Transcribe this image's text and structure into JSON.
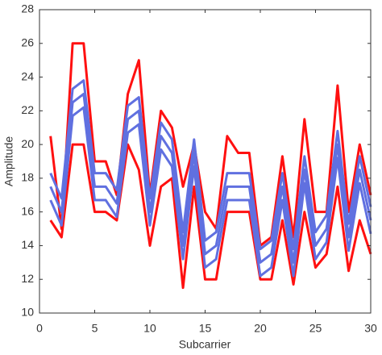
{
  "chart_data": {
    "type": "line",
    "x_label": "Subcarrier",
    "y_label": "Amplitude",
    "x": [
      1,
      2,
      3,
      4,
      5,
      6,
      7,
      8,
      9,
      10,
      11,
      12,
      13,
      14,
      15,
      16,
      17,
      18,
      19,
      20,
      21,
      22,
      23,
      24,
      25,
      26,
      27,
      28,
      29,
      30
    ],
    "series": [
      {
        "color": "#ff1010",
        "values": [
          20.5,
          15,
          26,
          26,
          19,
          19,
          17,
          23,
          25,
          17,
          22,
          21,
          17.5,
          20,
          16,
          15,
          20.5,
          19.5,
          19.5,
          14,
          14.5,
          19.3,
          14.5,
          21.5,
          16,
          16,
          23.5,
          16,
          20,
          17
        ]
      },
      {
        "color": "#ff1010",
        "values": [
          15.5,
          14.5,
          20,
          20,
          16,
          16,
          15.5,
          20,
          18.5,
          14,
          17.5,
          18,
          11.5,
          17.5,
          12,
          12,
          16,
          16,
          16,
          12,
          12,
          15.5,
          11.7,
          16,
          12.7,
          13.5,
          17.5,
          12.5,
          15.5,
          13.5
        ]
      },
      {
        "color": "#6070e0",
        "values": [
          18.3,
          16.8,
          23.3,
          23.8,
          18.3,
          18.3,
          17.3,
          22.3,
          22.8,
          16.8,
          21.3,
          20.3,
          14.8,
          20.3,
          14.3,
          14.8,
          18.3,
          18.3,
          18.3,
          13.8,
          14.3,
          18.3,
          13.8,
          19.3,
          14.8,
          15.8,
          20.8,
          15.3,
          19.3,
          16.3
        ]
      },
      {
        "color": "#6070e0",
        "values": [
          17.5,
          16,
          22.5,
          23,
          17.5,
          17.5,
          16.5,
          21.5,
          22,
          16,
          20.5,
          19.5,
          14,
          19.5,
          13.5,
          14,
          17.5,
          17.5,
          17.5,
          13,
          13.5,
          17.5,
          13,
          18.5,
          14,
          15,
          20,
          14.5,
          18.5,
          15.5
        ]
      },
      {
        "color": "#6070e0",
        "values": [
          16.7,
          15.2,
          21.7,
          22.2,
          16.7,
          16.7,
          15.7,
          20.7,
          21.2,
          15.2,
          19.7,
          18.7,
          13.2,
          18.7,
          12.7,
          13.2,
          16.7,
          16.7,
          16.7,
          12.2,
          12.7,
          16.7,
          12.2,
          17.7,
          13.2,
          14.2,
          19.2,
          13.7,
          17.7,
          14.7
        ]
      }
    ],
    "xlim": [
      0,
      30
    ],
    "xticks": [
      0,
      5,
      10,
      15,
      20,
      25,
      30
    ],
    "ylim": [
      10,
      28
    ],
    "yticks": [
      10,
      12,
      14,
      16,
      18,
      20,
      22,
      24,
      26,
      28
    ]
  }
}
